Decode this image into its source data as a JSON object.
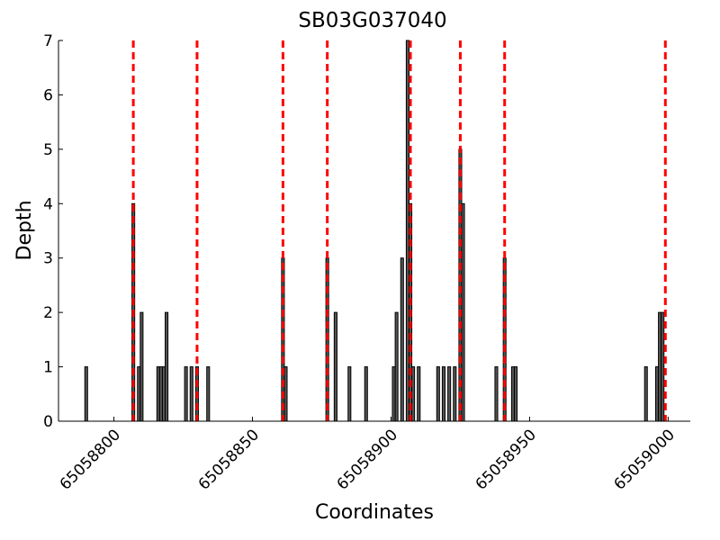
{
  "chart_data": {
    "type": "bar",
    "title": "SB03G037040",
    "x_label": "Coordinates",
    "y_label": "Depth",
    "x": [
      65058790,
      65058807,
      65058809,
      65058810,
      65058816,
      65058817,
      65058818,
      65058819,
      65058826,
      65058828,
      65058830,
      65058834,
      65058861,
      65058862,
      65058877,
      65058880,
      65058885,
      65058891,
      65058901,
      65058902,
      65058904,
      65058906,
      65058907,
      65058908,
      65058910,
      65058917,
      65058919,
      65058921,
      65058923,
      65058925,
      65058926,
      65058938,
      65058941,
      65058944,
      65058945,
      65058992,
      65058996,
      65058997,
      65058998
    ],
    "values": [
      1,
      4,
      1,
      2,
      1,
      1,
      1,
      2,
      1,
      1,
      1,
      1,
      3,
      1,
      3,
      2,
      1,
      1,
      1,
      2,
      3,
      7,
      4,
      1,
      1,
      1,
      1,
      1,
      1,
      5,
      4,
      1,
      3,
      1,
      1,
      1,
      1,
      2,
      2
    ],
    "color": "#555555",
    "markers": {
      "x": [
        65058807,
        65058830,
        65058861,
        65058877,
        65058907,
        65058925,
        65058941,
        65058999
      ],
      "color": "#ff0000"
    },
    "xlim": [
      65058780,
      65059008
    ],
    "xticks": [
      65058800,
      65058850,
      65058900,
      65058950,
      65059000
    ],
    "ylim": [
      0,
      7
    ],
    "yticks": [
      0,
      1,
      2,
      3,
      4,
      5,
      6,
      7
    ]
  }
}
